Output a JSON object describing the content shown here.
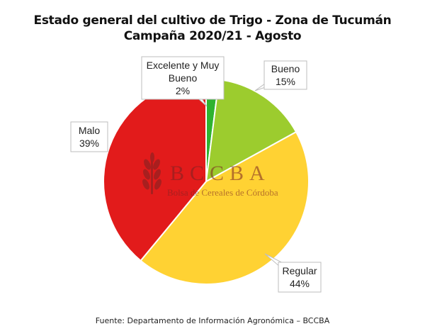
{
  "header": {
    "title_line1": "Estado general del cultivo de Trigo - Zona de Tucumán",
    "title_line2": "Campaña 2020/21 - Agosto"
  },
  "watermark": {
    "brand": "BCCBA",
    "subtitle": "Bolsa de Cereales de Córdoba"
  },
  "source_note": "Fuente: Departamento de Información Agronómica – BCCBA",
  "chart_data": {
    "type": "pie",
    "title": "Estado general del cultivo de Trigo - Zona de Tucumán",
    "subtitle": "Campaña 2020/21 - Agosto",
    "slices": [
      {
        "label_lines": [
          "Excelente y Muy",
          "Bueno"
        ],
        "value": 2,
        "value_label": "2%",
        "color": "#2fb32f"
      },
      {
        "label_lines": [
          "Bueno"
        ],
        "value": 15,
        "value_label": "15%",
        "color": "#9ccc2e"
      },
      {
        "label_lines": [
          "Regular"
        ],
        "value": 44,
        "value_label": "44%",
        "color": "#ffd233"
      },
      {
        "label_lines": [
          "Malo"
        ],
        "value": 39,
        "value_label": "39%",
        "color": "#e21b1b"
      }
    ],
    "legend": "none"
  }
}
